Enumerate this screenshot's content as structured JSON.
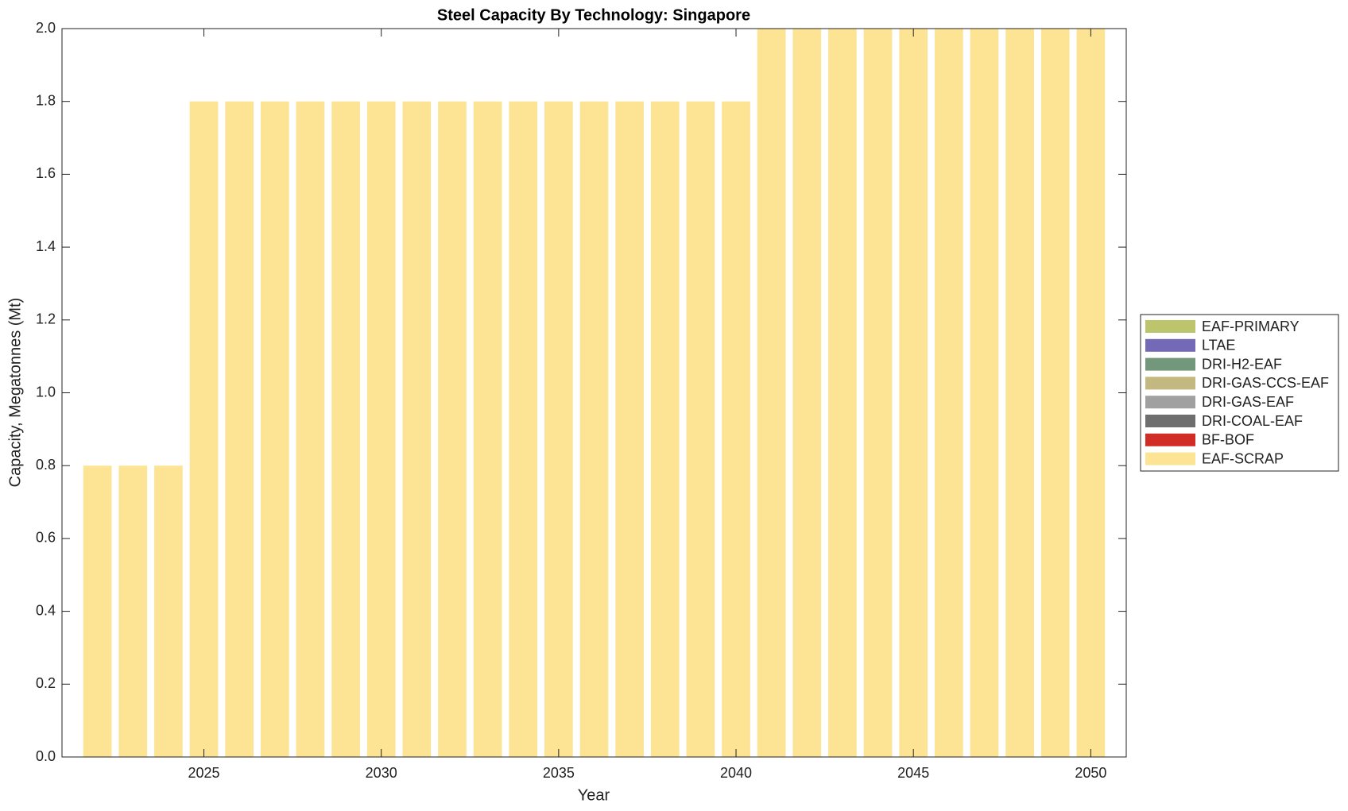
{
  "chart_data": {
    "type": "stacked-bar",
    "title": "Steel Capacity By Technology: Singapore",
    "x_label": "Year",
    "y_label": "Capacity, Megatonnes (Mt)",
    "x": [
      2022,
      2023,
      2024,
      2025,
      2026,
      2027,
      2028,
      2029,
      2030,
      2031,
      2032,
      2033,
      2034,
      2035,
      2036,
      2037,
      2038,
      2039,
      2040,
      2041,
      2042,
      2043,
      2044,
      2045,
      2046,
      2047,
      2048,
      2049,
      2050
    ],
    "xlim": [
      2021,
      2051
    ],
    "xticks": [
      2025,
      2030,
      2035,
      2040,
      2045,
      2050
    ],
    "ylim": [
      0,
      2
    ],
    "yticks": [
      {
        "value": 0,
        "label": "0.0"
      },
      0.2,
      0.4,
      0.6,
      0.8,
      {
        "value": 1,
        "label": "1.0"
      },
      1.2,
      1.4,
      1.6,
      1.8,
      {
        "value": 2,
        "label": "2.0"
      }
    ],
    "legend": "outside-right",
    "series": [
      {
        "name": "EAF-PRIMARY",
        "color": "#bcc46c",
        "values": [
          0,
          0,
          0,
          0,
          0,
          0,
          0,
          0,
          0,
          0,
          0,
          0,
          0,
          0,
          0,
          0,
          0,
          0,
          0,
          0,
          0,
          0,
          0,
          0,
          0,
          0,
          0,
          0,
          0
        ]
      },
      {
        "name": "LTAE",
        "color": "#7469b6",
        "values": [
          0,
          0,
          0,
          0,
          0,
          0,
          0,
          0,
          0,
          0,
          0,
          0,
          0,
          0,
          0,
          0,
          0,
          0,
          0,
          0,
          0,
          0,
          0,
          0,
          0,
          0,
          0,
          0,
          0
        ]
      },
      {
        "name": "DRI-H2-EAF",
        "color": "#73977a",
        "values": [
          0,
          0,
          0,
          0,
          0,
          0,
          0,
          0,
          0,
          0,
          0,
          0,
          0,
          0,
          0,
          0,
          0,
          0,
          0,
          0,
          0,
          0,
          0,
          0,
          0,
          0,
          0,
          0,
          0
        ]
      },
      {
        "name": "DRI-GAS-CCS-EAF",
        "color": "#c2b880",
        "values": [
          0,
          0,
          0,
          0,
          0,
          0,
          0,
          0,
          0,
          0,
          0,
          0,
          0,
          0,
          0,
          0,
          0,
          0,
          0,
          0,
          0,
          0,
          0,
          0,
          0,
          0,
          0,
          0,
          0
        ]
      },
      {
        "name": "DRI-GAS-EAF",
        "color": "#a0a0a0",
        "values": [
          0,
          0,
          0,
          0,
          0,
          0,
          0,
          0,
          0,
          0,
          0,
          0,
          0,
          0,
          0,
          0,
          0,
          0,
          0,
          0,
          0,
          0,
          0,
          0,
          0,
          0,
          0,
          0,
          0
        ]
      },
      {
        "name": "DRI-COAL-EAF",
        "color": "#6e6e6e",
        "values": [
          0,
          0,
          0,
          0,
          0,
          0,
          0,
          0,
          0,
          0,
          0,
          0,
          0,
          0,
          0,
          0,
          0,
          0,
          0,
          0,
          0,
          0,
          0,
          0,
          0,
          0,
          0,
          0,
          0
        ]
      },
      {
        "name": "BF-BOF",
        "color": "#d22c27",
        "values": [
          0,
          0,
          0,
          0,
          0,
          0,
          0,
          0,
          0,
          0,
          0,
          0,
          0,
          0,
          0,
          0,
          0,
          0,
          0,
          0,
          0,
          0,
          0,
          0,
          0,
          0,
          0,
          0,
          0
        ]
      },
      {
        "name": "EAF-SCRAP",
        "color": "#fde494",
        "values": [
          0.8,
          0.8,
          0.8,
          1.8,
          1.8,
          1.8,
          1.8,
          1.8,
          1.8,
          1.8,
          1.8,
          1.8,
          1.8,
          1.8,
          1.8,
          1.8,
          1.8,
          1.8,
          1.8,
          2,
          2,
          2,
          2,
          2,
          2,
          2,
          2,
          2,
          2
        ]
      }
    ]
  }
}
